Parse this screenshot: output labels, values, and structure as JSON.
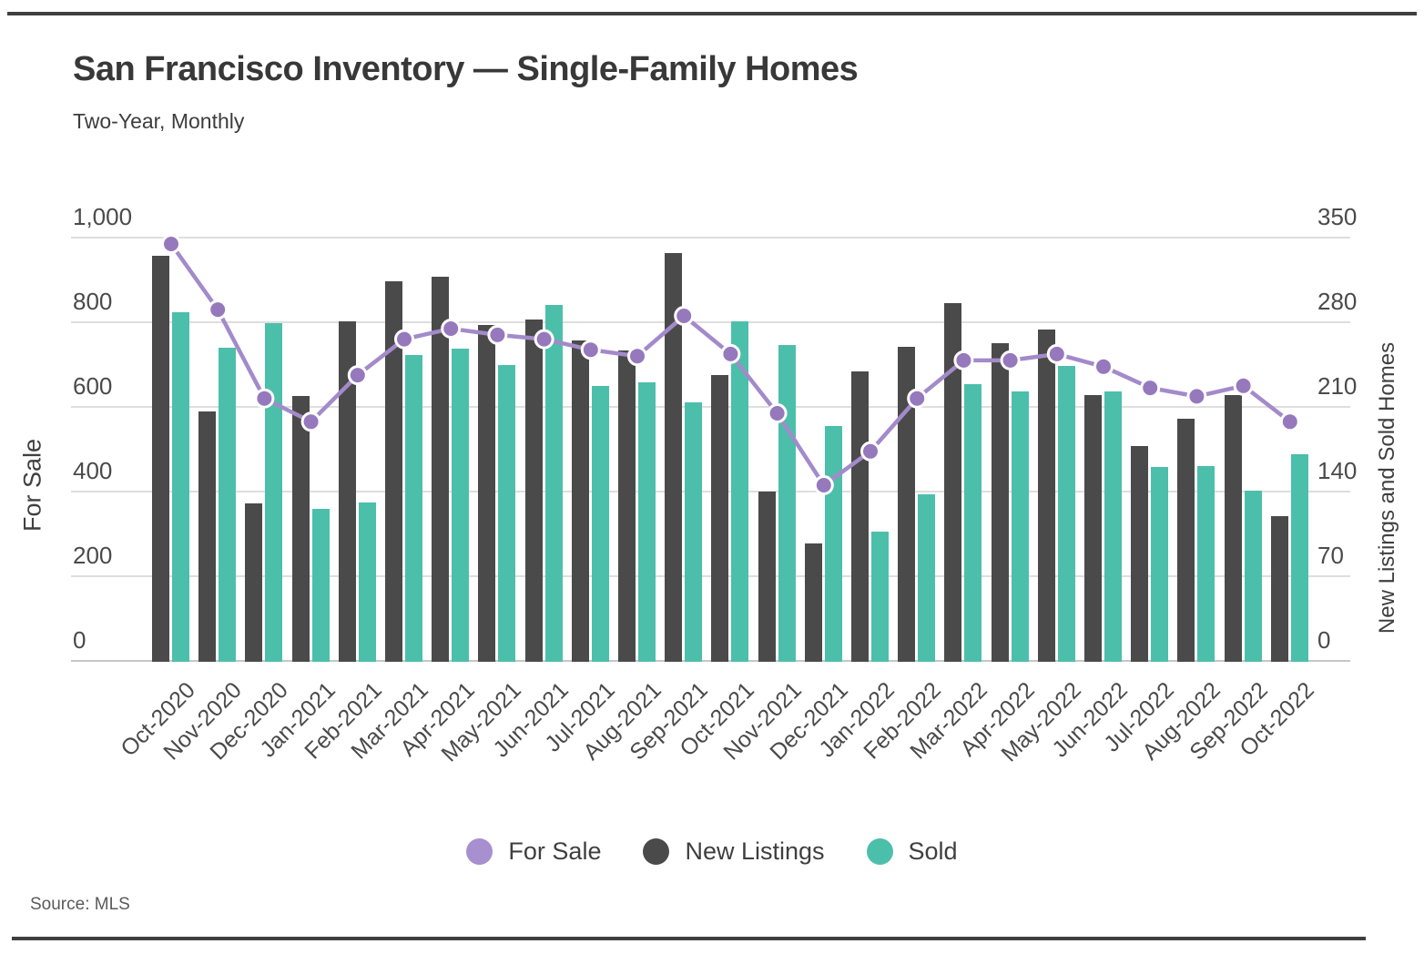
{
  "header": {
    "title": "San Francisco Inventory — Single-Family Homes",
    "subtitle": "Two-Year, Monthly"
  },
  "axes": {
    "left": {
      "title": "For Sale",
      "max": 1000,
      "ticks": [
        "0",
        "200",
        "400",
        "600",
        "800",
        "1,000"
      ]
    },
    "right": {
      "title": "New Listings and Sold Homes",
      "max": 350,
      "ticks": [
        "0",
        "70",
        "140",
        "210",
        "280",
        "350"
      ]
    }
  },
  "legend": [
    {
      "label": "For Sale",
      "color": "#a78fd0"
    },
    {
      "label": "New Listings",
      "color": "#4a4a4b"
    },
    {
      "label": "Sold",
      "color": "#4cbfab"
    }
  ],
  "source": "Source: MLS",
  "colors": {
    "line": "#a38aca",
    "point": "#9678bd",
    "point_ring": "#ffffff",
    "bar_dark": "#4a4a4b",
    "bar_teal": "#4cbfab",
    "grid": "#dedede",
    "baseline": "#c6c6c6",
    "border_rule": "#3f3f3f"
  },
  "chart_data": {
    "type": "bar",
    "subtype": "dual-axis grouped bars with line overlay",
    "title": "San Francisco Inventory — Single-Family Homes",
    "subtitle": "Two-Year, Monthly",
    "grid": "on",
    "legend_position": "bottom",
    "x_tick_rotation": -45,
    "left_axis": {
      "label": "For Sale",
      "range": [
        0,
        1000
      ]
    },
    "right_axis": {
      "label": "New Listings and Sold Homes",
      "range": [
        0,
        350
      ]
    },
    "categories": [
      "Oct-2020",
      "Nov-2020",
      "Dec-2020",
      "Jan-2021",
      "Feb-2021",
      "Mar-2021",
      "Apr-2021",
      "May-2021",
      "Jun-2021",
      "Jul-2021",
      "Aug-2021",
      "Sep-2021",
      "Oct-2021",
      "Nov-2021",
      "Dec-2021",
      "Jan-2022",
      "Feb-2022",
      "Mar-2022",
      "Apr-2022",
      "May-2022",
      "Jun-2022",
      "Jul-2022",
      "Aug-2022",
      "Sep-2022",
      "Oct-2022"
    ],
    "series": [
      {
        "name": "For Sale",
        "type": "line",
        "axis": "left",
        "color": "#a38aca",
        "values": [
          985,
          830,
          620,
          565,
          675,
          760,
          785,
          770,
          760,
          735,
          720,
          815,
          725,
          585,
          415,
          495,
          620,
          710,
          710,
          725,
          695,
          645,
          625,
          650,
          565
        ]
      },
      {
        "name": "New Listings",
        "type": "bar",
        "axis": "right",
        "color": "#4a4a4b",
        "values": [
          335,
          206,
          130,
          219,
          281,
          314,
          318,
          278,
          282,
          265,
          257,
          337,
          236,
          140,
          97,
          239,
          260,
          296,
          263,
          274,
          220,
          178,
          200,
          220,
          120
        ]
      },
      {
        "name": "Sold",
        "type": "bar",
        "axis": "right",
        "color": "#4cbfab",
        "values": [
          288,
          259,
          279,
          126,
          131,
          253,
          258,
          245,
          294,
          227,
          230,
          214,
          281,
          261,
          194,
          107,
          138,
          229,
          223,
          244,
          223,
          160,
          161,
          141,
          171
        ]
      }
    ]
  }
}
